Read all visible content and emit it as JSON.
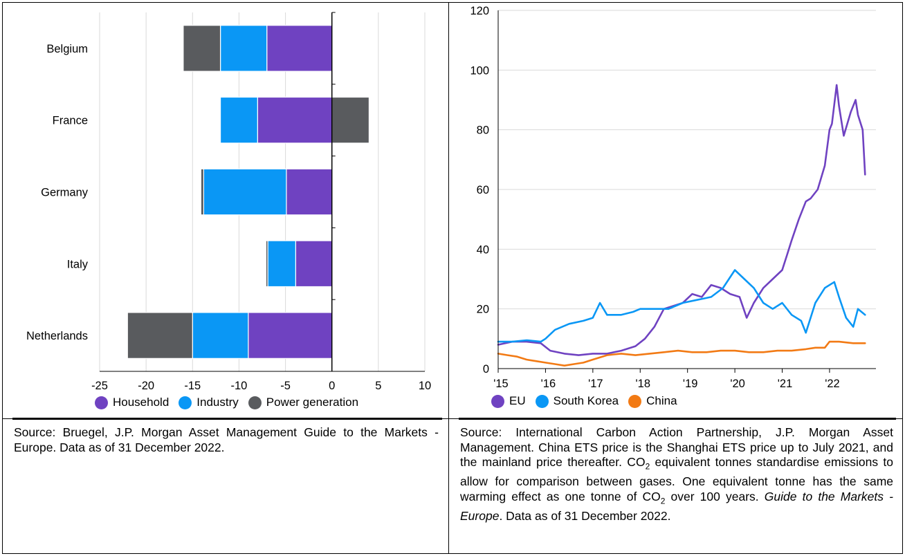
{
  "left": {
    "source_text": "Source: Bruegel, J.P. Morgan Asset Management Guide to the Markets - Europe. Data as of 31 December 2022."
  },
  "right": {
    "source_prefix": "Source: International Carbon Action Partnership, J.P. Morgan Asset Management. China ETS price is the Shanghai ETS price up to July 2021, and the mainland price thereafter. CO",
    "source_sub1": "2",
    "source_mid": " equivalent tonnes standardise emissions to allow for comparison between gases. One equivalent tonne has the same warming effect as one tonne of CO",
    "source_sub2": "2",
    "source_mid2": " over 100 years. ",
    "source_italic": "Guide to the Markets - Europe",
    "source_suffix": ". Data as of 31 December 2022."
  },
  "chart_data": [
    {
      "type": "bar",
      "orientation": "horizontal",
      "stacked": true,
      "categories": [
        "Belgium",
        "France",
        "Germany",
        "Italy",
        "Netherlands"
      ],
      "series": [
        {
          "name": "Household",
          "color": "#6f42c1",
          "values": [
            -7,
            -8,
            -4.9,
            -3.9,
            -9
          ]
        },
        {
          "name": "Industry",
          "color": "#0a97f5",
          "values": [
            -5,
            -4,
            -8.9,
            -3,
            -6
          ]
        },
        {
          "name": "Power generation",
          "color": "#595b5e",
          "values": [
            -4,
            4,
            -0.3,
            -0.2,
            -7
          ]
        }
      ],
      "xlim": [
        -25,
        10
      ],
      "xticks": [
        "-25",
        "-20",
        "-15",
        "-10",
        "-5",
        "0",
        "5",
        "10"
      ],
      "grid": "vertical",
      "legend": "bottom"
    },
    {
      "type": "line",
      "x_labels": [
        "'15",
        "'16",
        "'17",
        "'18",
        "'19",
        "'20",
        "'21",
        "'22"
      ],
      "ylim": [
        0,
        120
      ],
      "yticks": [
        "0",
        "20",
        "40",
        "60",
        "80",
        "100",
        "120"
      ],
      "grid": "horizontal",
      "legend": "bottom",
      "series": [
        {
          "name": "EU",
          "color": "#6f42c1",
          "x": [
            2015.0,
            2015.3,
            2015.6,
            2015.9,
            2016.1,
            2016.4,
            2016.7,
            2017.0,
            2017.3,
            2017.6,
            2017.9,
            2018.1,
            2018.3,
            2018.5,
            2018.7,
            2018.9,
            2019.1,
            2019.3,
            2019.5,
            2019.7,
            2019.9,
            2020.1,
            2020.25,
            2020.4,
            2020.6,
            2020.8,
            2021.0,
            2021.1,
            2021.2,
            2021.35,
            2021.5,
            2021.6,
            2021.75,
            2021.9,
            2022.0,
            2022.05,
            2022.15,
            2022.2,
            2022.3,
            2022.45,
            2022.55,
            2022.6,
            2022.7,
            2022.75
          ],
          "y": [
            8,
            9,
            9,
            8.5,
            6,
            5,
            4.5,
            5,
            5,
            6,
            7.5,
            10,
            14,
            20,
            21,
            22,
            25,
            24,
            28,
            27,
            25,
            24,
            17,
            22,
            27,
            30,
            33,
            38,
            43,
            50,
            56,
            57,
            60,
            68,
            80,
            82,
            95,
            88,
            78,
            86,
            90,
            85,
            80,
            65
          ]
        },
        {
          "name": "South Korea",
          "color": "#0a97f5",
          "x": [
            2015.0,
            2015.3,
            2015.6,
            2015.9,
            2016.0,
            2016.2,
            2016.5,
            2016.8,
            2017.0,
            2017.15,
            2017.3,
            2017.6,
            2017.85,
            2018.0,
            2018.3,
            2018.6,
            2018.9,
            2019.2,
            2019.5,
            2019.75,
            2020.0,
            2020.2,
            2020.4,
            2020.6,
            2020.8,
            2021.0,
            2021.2,
            2021.4,
            2021.5,
            2021.7,
            2021.9,
            2022.1,
            2022.2,
            2022.35,
            2022.5,
            2022.6,
            2022.75
          ],
          "y": [
            9,
            9,
            9.5,
            9,
            10,
            13,
            15,
            16,
            17,
            22,
            18,
            18,
            19,
            20,
            20,
            20,
            22,
            23,
            24,
            27,
            33,
            30,
            27,
            22,
            20,
            22,
            18,
            16,
            12,
            22,
            27,
            29,
            24,
            17,
            14,
            20,
            18
          ]
        },
        {
          "name": "China",
          "color": "#f27a14",
          "x": [
            2015.0,
            2015.2,
            2015.4,
            2015.6,
            2015.8,
            2016.0,
            2016.2,
            2016.4,
            2016.6,
            2016.8,
            2017.0,
            2017.3,
            2017.6,
            2017.9,
            2018.2,
            2018.5,
            2018.8,
            2019.1,
            2019.4,
            2019.7,
            2020.0,
            2020.3,
            2020.6,
            2020.9,
            2021.2,
            2021.5,
            2021.7,
            2021.9,
            2022.0,
            2022.2,
            2022.5,
            2022.75
          ],
          "y": [
            5,
            4.5,
            4,
            3,
            2.5,
            2,
            1.5,
            1,
            1.5,
            2,
            3,
            4.5,
            5,
            4.5,
            5,
            5.5,
            6,
            5.5,
            5.5,
            6,
            6,
            5.5,
            5.5,
            6,
            6,
            6.5,
            7,
            7,
            9,
            9,
            8.5,
            8.5
          ]
        }
      ]
    }
  ]
}
